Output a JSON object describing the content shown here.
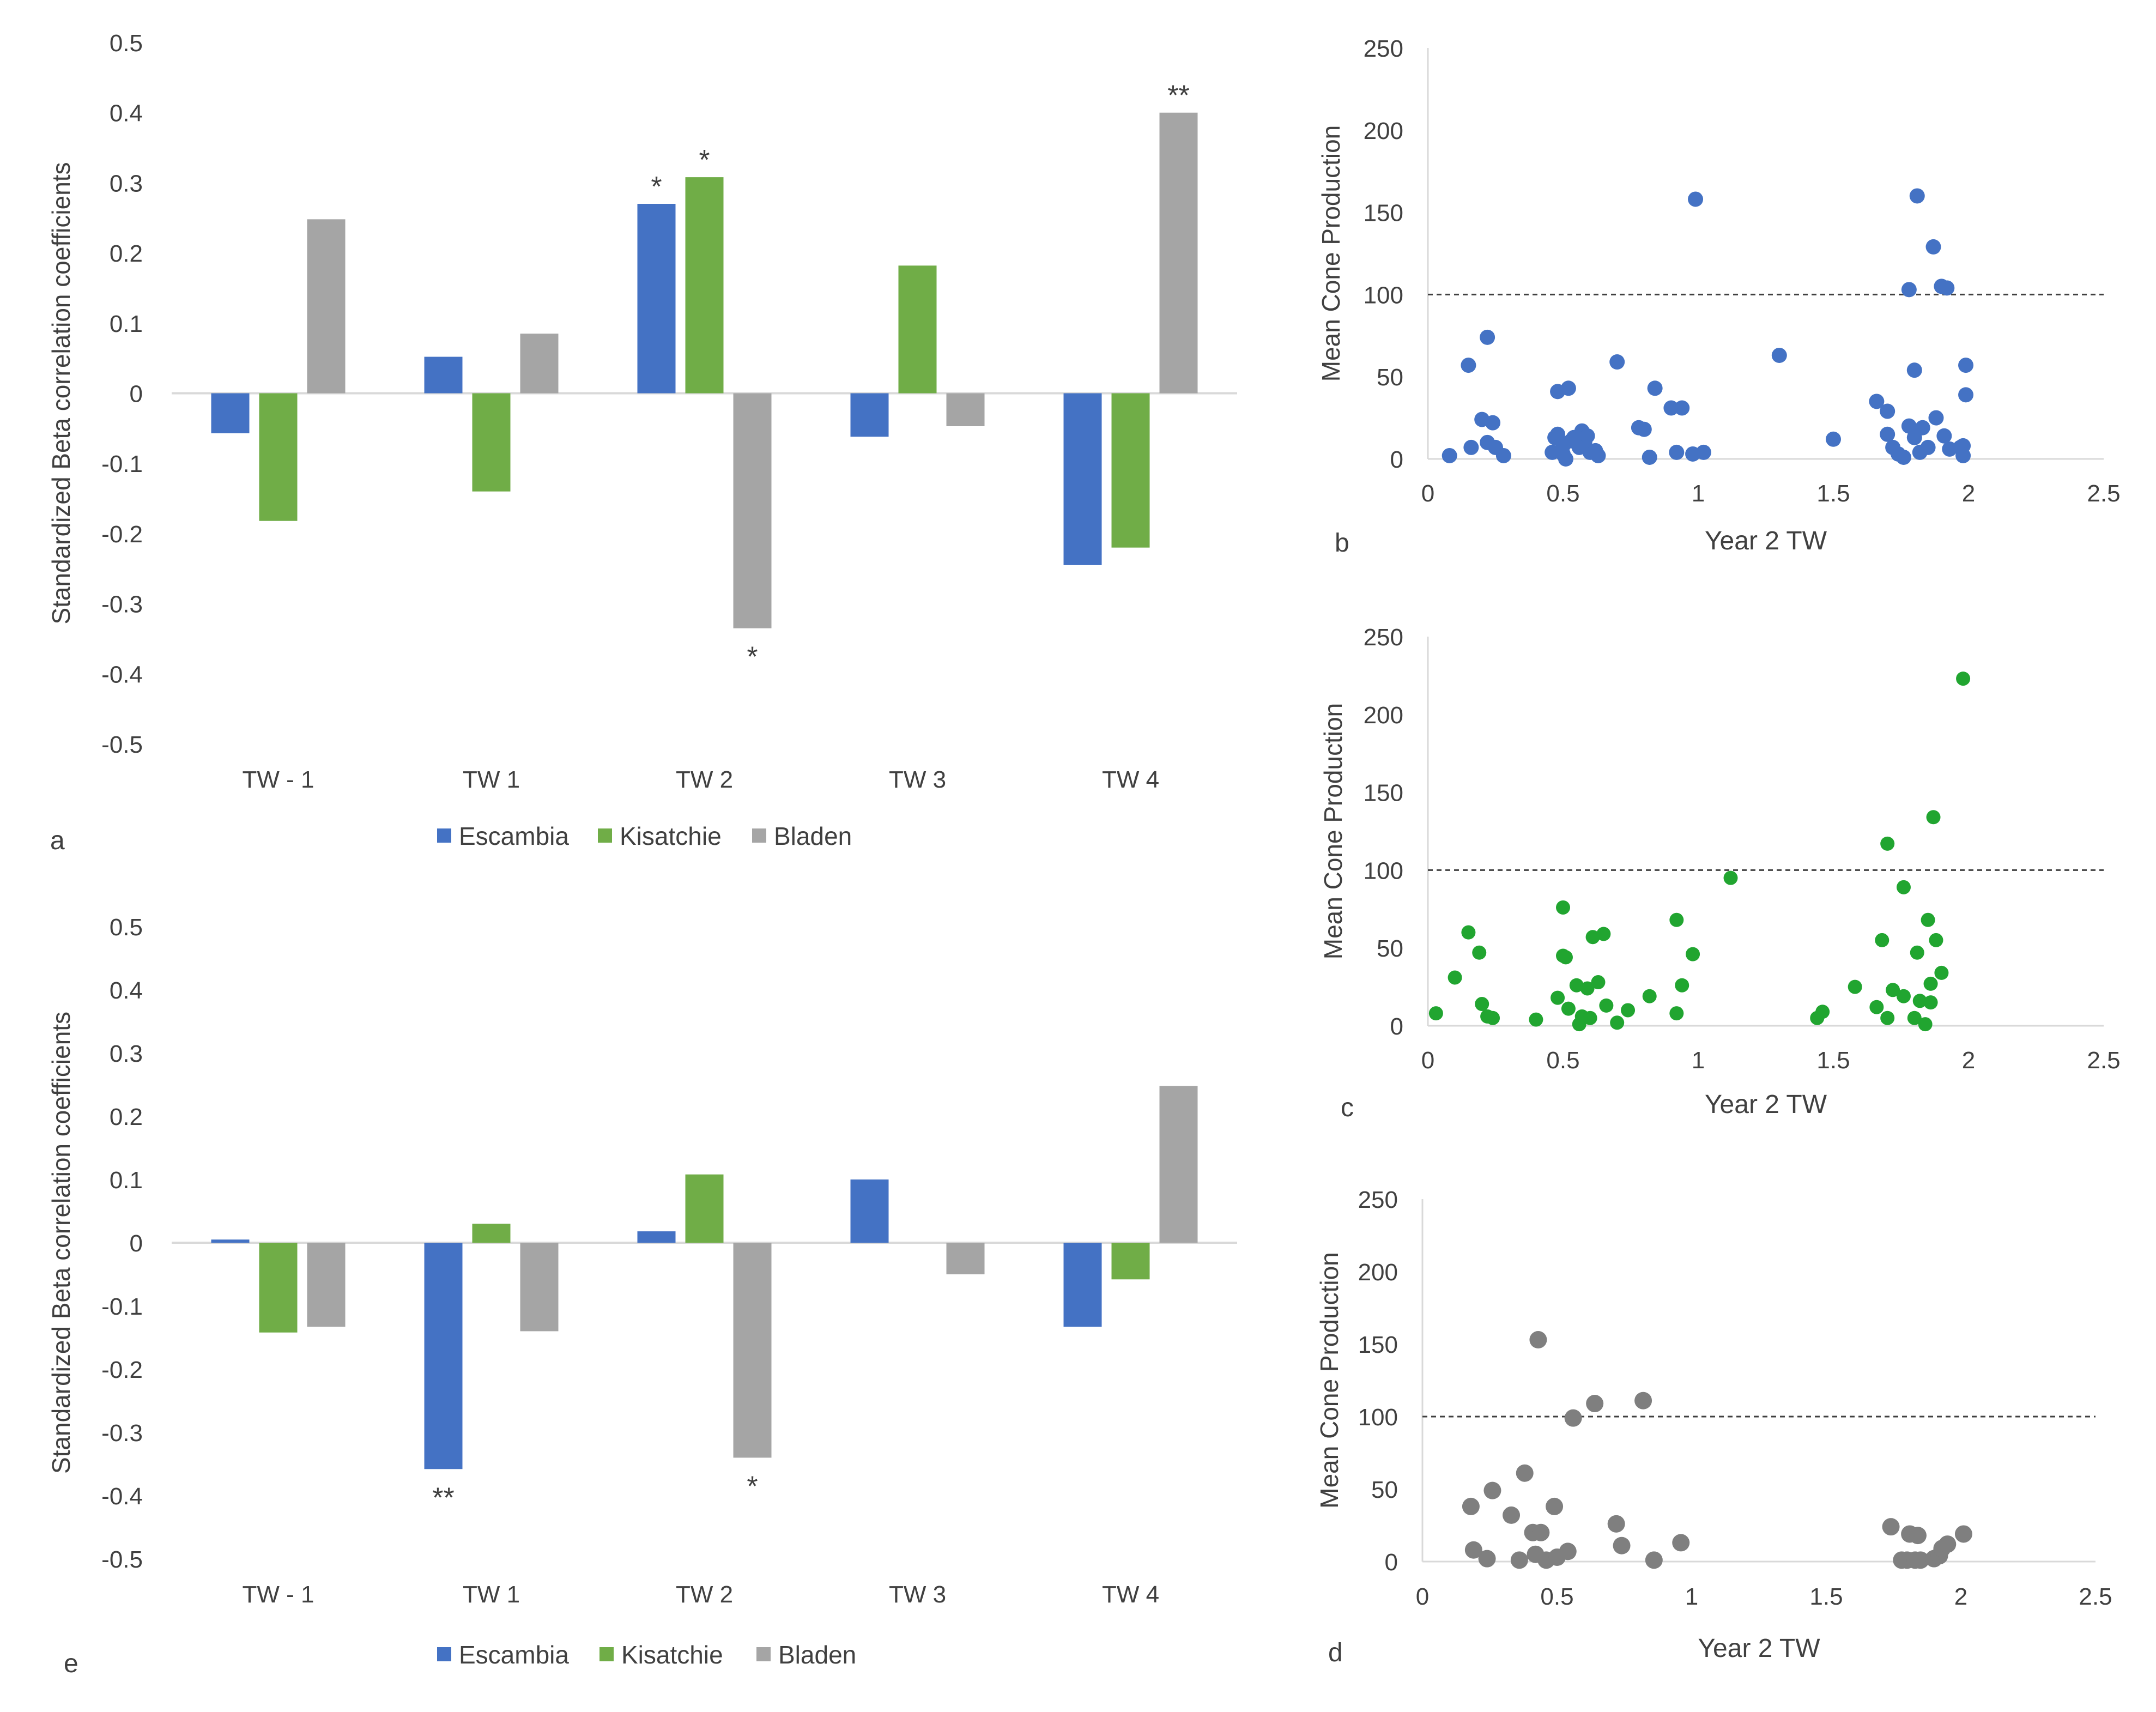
{
  "chart_data": [
    {
      "panel": "a",
      "type": "bar",
      "ylabel": "Standardized Beta correlation coefficients",
      "ylim": [
        -0.5,
        0.5
      ],
      "yticks": [
        "0.5",
        "0.4",
        "0.3",
        "0.2",
        "0.1",
        "0",
        "-0.1",
        "-0.2",
        "-0.3",
        "-0.4",
        "-0.5"
      ],
      "categories": [
        "TW - 1",
        "TW 1",
        "TW 2",
        "TW 3",
        "TW 4"
      ],
      "series": [
        {
          "name": "Escambia",
          "color": "#4472C4",
          "values": [
            -0.057,
            0.052,
            0.27,
            -0.062,
            -0.245
          ]
        },
        {
          "name": "Kisatchie",
          "color": "#70AD47",
          "values": [
            -0.182,
            -0.14,
            0.308,
            0.182,
            -0.22
          ]
        },
        {
          "name": "Bladen",
          "color": "#A5A5A5",
          "values": [
            0.248,
            0.085,
            -0.335,
            -0.047,
            0.4
          ]
        }
      ],
      "annotations": [
        {
          "category": 1,
          "series": 0,
          "text": "",
          "skip": true
        },
        {
          "category": 2,
          "series": 0,
          "text": "*"
        },
        {
          "category": 2,
          "series": 1,
          "text": "*"
        },
        {
          "category": 2,
          "series": 2,
          "text": "*"
        },
        {
          "category": 4,
          "series": 2,
          "text": "**"
        }
      ],
      "legend": "bottom"
    },
    {
      "panel": "e",
      "type": "bar",
      "ylabel": "Standardized Beta correlation coefficients",
      "ylim": [
        -0.5,
        0.5
      ],
      "yticks": [
        "0.5",
        "0.4",
        "0.3",
        "0.2",
        "0.1",
        "0",
        "-0.1",
        "-0.2",
        "-0.3",
        "-0.4",
        "-0.5"
      ],
      "categories": [
        "TW - 1",
        "TW 1",
        "TW 2",
        "TW 3",
        "TW 4"
      ],
      "series": [
        {
          "name": "Escambia",
          "color": "#4472C4",
          "values": [
            0.005,
            -0.358,
            0.018,
            0.1,
            -0.133
          ]
        },
        {
          "name": "Kisatchie",
          "color": "#70AD47",
          "values": [
            -0.142,
            0.03,
            0.108,
            0.0,
            -0.058
          ]
        },
        {
          "name": "Bladen",
          "color": "#A5A5A5",
          "values": [
            -0.133,
            -0.14,
            -0.34,
            -0.05,
            0.248
          ]
        }
      ],
      "annotations": [
        {
          "category": 1,
          "series": 0,
          "text": "**"
        },
        {
          "category": 2,
          "series": 2,
          "text": "*"
        }
      ],
      "legend": "bottom"
    },
    {
      "panel": "b",
      "type": "scatter",
      "xlabel": "Year 2 TW",
      "ylabel": "Mean Cone Production",
      "xlim": [
        0,
        2.5
      ],
      "ylim": [
        0,
        250
      ],
      "xticks": [
        "0",
        "0.5",
        "1",
        "1.5",
        "2",
        "2.5"
      ],
      "yticks": [
        "250",
        "200",
        "150",
        "100",
        "50",
        "0"
      ],
      "reference_line_y": 100,
      "color": "#4472C4",
      "points": [
        [
          0.08,
          2
        ],
        [
          0.15,
          57
        ],
        [
          0.16,
          7
        ],
        [
          0.2,
          24
        ],
        [
          0.22,
          10
        ],
        [
          0.22,
          74
        ],
        [
          0.24,
          22
        ],
        [
          0.25,
          7
        ],
        [
          0.28,
          2
        ],
        [
          0.46,
          4
        ],
        [
          0.47,
          13
        ],
        [
          0.48,
          15
        ],
        [
          0.48,
          41
        ],
        [
          0.5,
          8
        ],
        [
          0.5,
          3
        ],
        [
          0.51,
          0
        ],
        [
          0.52,
          43
        ],
        [
          0.53,
          11
        ],
        [
          0.54,
          13
        ],
        [
          0.56,
          7
        ],
        [
          0.57,
          17
        ],
        [
          0.58,
          10
        ],
        [
          0.59,
          14
        ],
        [
          0.6,
          4
        ],
        [
          0.62,
          5
        ],
        [
          0.63,
          2
        ],
        [
          0.7,
          59
        ],
        [
          0.78,
          19
        ],
        [
          0.8,
          18
        ],
        [
          0.82,
          1
        ],
        [
          0.84,
          43
        ],
        [
          0.9,
          31
        ],
        [
          0.92,
          4
        ],
        [
          0.94,
          31
        ],
        [
          0.98,
          3
        ],
        [
          0.99,
          158
        ],
        [
          1.02,
          4
        ],
        [
          1.3,
          63
        ],
        [
          1.5,
          12
        ],
        [
          1.66,
          35
        ],
        [
          1.7,
          29
        ],
        [
          1.7,
          15
        ],
        [
          1.72,
          7
        ],
        [
          1.74,
          3
        ],
        [
          1.76,
          1
        ],
        [
          1.78,
          103
        ],
        [
          1.78,
          20
        ],
        [
          1.8,
          13
        ],
        [
          1.8,
          54
        ],
        [
          1.81,
          160
        ],
        [
          1.82,
          4
        ],
        [
          1.83,
          19
        ],
        [
          1.85,
          7
        ],
        [
          1.87,
          129
        ],
        [
          1.88,
          25
        ],
        [
          1.9,
          105
        ],
        [
          1.91,
          14
        ],
        [
          1.92,
          104
        ],
        [
          1.93,
          6
        ],
        [
          1.97,
          7
        ],
        [
          1.98,
          2
        ],
        [
          1.98,
          8
        ],
        [
          1.99,
          39
        ],
        [
          1.99,
          57
        ]
      ]
    },
    {
      "panel": "c",
      "type": "scatter",
      "xlabel": "Year 2 TW",
      "ylabel": "Mean Cone Production",
      "xlim": [
        0,
        2.5
      ],
      "ylim": [
        0,
        250
      ],
      "xticks": [
        "0",
        "0.5",
        "1",
        "1.5",
        "2",
        "2.5"
      ],
      "yticks": [
        "250",
        "200",
        "150",
        "100",
        "50",
        "0"
      ],
      "reference_line_y": 100,
      "color": "#21A530",
      "points": [
        [
          0.03,
          8
        ],
        [
          0.1,
          31
        ],
        [
          0.15,
          60
        ],
        [
          0.19,
          47
        ],
        [
          0.2,
          14
        ],
        [
          0.22,
          6
        ],
        [
          0.24,
          5
        ],
        [
          0.4,
          4
        ],
        [
          0.48,
          18
        ],
        [
          0.5,
          76
        ],
        [
          0.5,
          45
        ],
        [
          0.51,
          44
        ],
        [
          0.52,
          11
        ],
        [
          0.55,
          26
        ],
        [
          0.56,
          1
        ],
        [
          0.57,
          6
        ],
        [
          0.59,
          24
        ],
        [
          0.6,
          5
        ],
        [
          0.61,
          57
        ],
        [
          0.63,
          28
        ],
        [
          0.65,
          59
        ],
        [
          0.66,
          13
        ],
        [
          0.7,
          2
        ],
        [
          0.74,
          10
        ],
        [
          0.82,
          19
        ],
        [
          0.92,
          8
        ],
        [
          0.92,
          68
        ],
        [
          0.94,
          26
        ],
        [
          0.98,
          46
        ],
        [
          1.12,
          95
        ],
        [
          1.44,
          5
        ],
        [
          1.46,
          9
        ],
        [
          1.58,
          25
        ],
        [
          1.66,
          12
        ],
        [
          1.68,
          55
        ],
        [
          1.7,
          5
        ],
        [
          1.7,
          117
        ],
        [
          1.72,
          23
        ],
        [
          1.76,
          89
        ],
        [
          1.76,
          19
        ],
        [
          1.8,
          5
        ],
        [
          1.81,
          47
        ],
        [
          1.82,
          16
        ],
        [
          1.84,
          1
        ],
        [
          1.85,
          68
        ],
        [
          1.86,
          15
        ],
        [
          1.86,
          27
        ],
        [
          1.87,
          134
        ],
        [
          1.88,
          55
        ],
        [
          1.9,
          34
        ],
        [
          1.98,
          223
        ]
      ]
    },
    {
      "panel": "d",
      "type": "scatter",
      "xlabel": "Year 2 TW",
      "ylabel": "Mean Cone Production",
      "xlim": [
        0,
        2.5
      ],
      "ylim": [
        0,
        250
      ],
      "xticks": [
        "0",
        "0.5",
        "1",
        "1.5",
        "2",
        "2.5"
      ],
      "yticks": [
        "250",
        "200",
        "150",
        "100",
        "50",
        "0"
      ],
      "reference_line_y": 100,
      "color": "#7F7F7F",
      "points": [
        [
          0.18,
          38
        ],
        [
          0.19,
          8
        ],
        [
          0.24,
          2
        ],
        [
          0.26,
          49
        ],
        [
          0.33,
          32
        ],
        [
          0.36,
          1
        ],
        [
          0.38,
          61
        ],
        [
          0.41,
          20
        ],
        [
          0.42,
          5
        ],
        [
          0.43,
          153
        ],
        [
          0.44,
          20
        ],
        [
          0.46,
          1
        ],
        [
          0.49,
          38
        ],
        [
          0.5,
          3
        ],
        [
          0.54,
          7
        ],
        [
          0.56,
          99
        ],
        [
          0.64,
          109
        ],
        [
          0.72,
          26
        ],
        [
          0.74,
          11
        ],
        [
          0.82,
          111
        ],
        [
          0.86,
          1
        ],
        [
          0.96,
          13
        ],
        [
          1.74,
          24
        ],
        [
          1.78,
          1
        ],
        [
          1.8,
          1
        ],
        [
          1.81,
          19
        ],
        [
          1.83,
          1
        ],
        [
          1.84,
          18
        ],
        [
          1.85,
          1
        ],
        [
          1.9,
          2
        ],
        [
          1.92,
          4
        ],
        [
          1.93,
          9
        ],
        [
          1.95,
          12
        ],
        [
          2.01,
          19
        ]
      ]
    }
  ],
  "panel_letters": {
    "a": "a",
    "b": "b",
    "c": "c",
    "d": "d",
    "e": "e"
  },
  "legend_labels": [
    "Escambia",
    "Kisatchie",
    "Bladen"
  ]
}
